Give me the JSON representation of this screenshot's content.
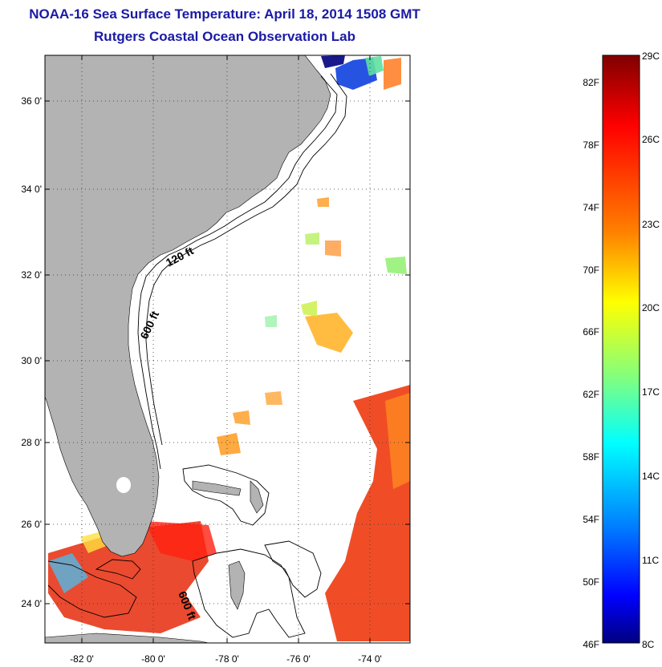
{
  "header": {
    "title": "NOAA-16 Sea Surface Temperature:  April 18, 2014 1508 GMT",
    "subtitle": "Rutgers Coastal Ocean Observation Lab"
  },
  "map": {
    "lat_labels": [
      "36 0'",
      "34 0'",
      "32 0'",
      "30 0'",
      "28 0'",
      "26 0'",
      "24 0'"
    ],
    "lon_labels": [
      "-82 0'",
      "-80 0'",
      "-78 0'",
      "-76 0'",
      "-74 0'"
    ],
    "contour_labels": [
      "120 ft",
      "600 ft",
      "600 ft"
    ],
    "land_color": "#b3b3b3"
  },
  "colorbar": {
    "fahrenheit_labels": [
      "82F",
      "78F",
      "74F",
      "70F",
      "66F",
      "62F",
      "58F",
      "54F",
      "50F",
      "46F"
    ],
    "celsius_labels": [
      "29C",
      "26C",
      "23C",
      "20C",
      "17C",
      "14C",
      "11C",
      "8C"
    ],
    "colors": [
      "#800000",
      "#ff0000",
      "#ff8000",
      "#ffff00",
      "#80ff80",
      "#00ffff",
      "#0080ff",
      "#0000ff",
      "#000080"
    ]
  }
}
